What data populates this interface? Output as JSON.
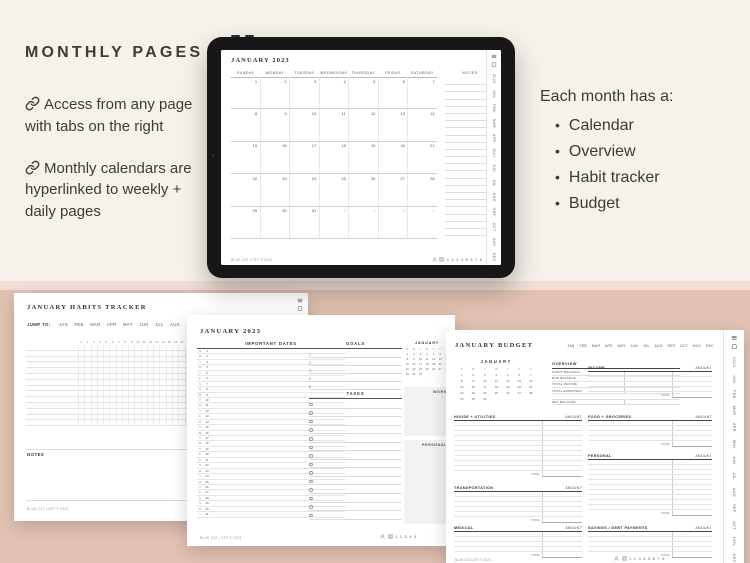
{
  "colors": {
    "top_bg": "#f6f1ea",
    "divider_strip": "#f2dfd8",
    "bottom_bg": "#e1c2b3",
    "ink": "#3d3b37",
    "tablet_frame": "#171717",
    "page_line": "#e3e3e3",
    "shaded_box": "#f2f2f1"
  },
  "intro": {
    "heading": "MONTHLY PAGES",
    "features": [
      "Access from any page with tabs on the right",
      "Monthly calendars are hyperlinked to weekly + daily pages"
    ]
  },
  "month_contents": {
    "intro": "Each month has a:",
    "items": [
      "Calendar",
      "Overview",
      "Habit tracker",
      "Budget"
    ]
  },
  "year": "2023",
  "months_short": [
    "JAN",
    "FEB",
    "MAR",
    "APR",
    "MAY",
    "JUN",
    "JUL",
    "AUG",
    "SEP",
    "OCT",
    "NOV",
    "DEC"
  ],
  "footer_credit": "BLUE CAT LOFT © 2023",
  "bullet_glyph": "•",
  "tablet_calendar": {
    "title": "JANUARY 2023",
    "day_headers": [
      "SUNDAY",
      "MONDAY",
      "TUESDAY",
      "WEDNESDAY",
      "THURSDAY",
      "FRIDAY",
      "SATURDAY"
    ],
    "notes_label": "NOTES",
    "weeks": [
      {
        "days": [
          "1",
          "2",
          "3",
          "4",
          "5",
          "6",
          "7"
        ],
        "muted_from": null
      },
      {
        "days": [
          "8",
          "9",
          "10",
          "11",
          "12",
          "13",
          "14"
        ],
        "muted_from": null
      },
      {
        "days": [
          "15",
          "16",
          "17",
          "18",
          "19",
          "20",
          "21"
        ],
        "muted_from": null
      },
      {
        "days": [
          "22",
          "23",
          "24",
          "25",
          "26",
          "27",
          "28"
        ],
        "muted_from": null
      },
      {
        "days": [
          "29",
          "30",
          "31",
          "1",
          "2",
          "3",
          "4"
        ],
        "muted_from": 3
      }
    ],
    "page_numbers": [
      "1",
      "2",
      "3",
      "4",
      "5",
      "6",
      "7",
      "8"
    ]
  },
  "mini_calendar": {
    "day_letters": [
      "S",
      "M",
      "T",
      "W",
      "T",
      "F",
      "S"
    ],
    "weeks": [
      [
        "1",
        "2",
        "3",
        "4",
        "5",
        "6",
        "7"
      ],
      [
        "8",
        "9",
        "10",
        "11",
        "12",
        "13",
        "14"
      ],
      [
        "15",
        "16",
        "17",
        "18",
        "19",
        "20",
        "21"
      ],
      [
        "22",
        "23",
        "24",
        "25",
        "26",
        "27",
        "28"
      ],
      [
        "29",
        "30",
        "31",
        "",
        "",
        "",
        ""
      ]
    ]
  },
  "habit_page": {
    "title": "JANUARY HABITS TRACKER",
    "jump_label": "JUMP TO:",
    "day_count": 31,
    "habit_rows": 14,
    "notes_label": "NOTES"
  },
  "overview_page": {
    "title": "JANUARY 2023",
    "important_dates_label": "IMPORTANT DATES",
    "day_rows": [
      [
        "S",
        "1"
      ],
      [
        "M",
        "2"
      ],
      [
        "T",
        "3"
      ],
      [
        "W",
        "4"
      ],
      [
        "T",
        "5"
      ],
      [
        "F",
        "6"
      ],
      [
        "S",
        "7"
      ],
      [
        "S",
        "8"
      ],
      [
        "M",
        "9"
      ],
      [
        "T",
        "10"
      ],
      [
        "W",
        "11"
      ],
      [
        "T",
        "12"
      ],
      [
        "F",
        "13"
      ],
      [
        "S",
        "14"
      ],
      [
        "S",
        "15"
      ],
      [
        "M",
        "16"
      ],
      [
        "T",
        "17"
      ],
      [
        "W",
        "18"
      ],
      [
        "T",
        "19"
      ],
      [
        "F",
        "20"
      ],
      [
        "S",
        "21"
      ],
      [
        "S",
        "22"
      ],
      [
        "M",
        "23"
      ],
      [
        "T",
        "24"
      ],
      [
        "W",
        "25"
      ],
      [
        "T",
        "26"
      ],
      [
        "F",
        "27"
      ],
      [
        "S",
        "28"
      ],
      [
        "S",
        "29"
      ],
      [
        "M",
        "30"
      ],
      [
        "T",
        "31"
      ]
    ],
    "goals_label": "GOALS",
    "goal_numbers": [
      "1",
      "2",
      "3",
      "4",
      "5"
    ],
    "tasks_label": "TASKS",
    "task_rows": 14,
    "mini_calendar_title": "JANUARY",
    "work_label": "WORK",
    "personal_label": "PERSONAL",
    "page_numbers": [
      "1",
      "2",
      "3",
      "4",
      "5"
    ]
  },
  "budget_page": {
    "title": "JANUARY BUDGET",
    "mini_calendar_title": "JANUARY",
    "overview_label": "OVERVIEW",
    "overview_rows": [
      "START BALANCE",
      "END BALANCE",
      "TOTAL INCOME",
      "TOTAL EXPENSES"
    ],
    "net_row_label": "NET BALANCE",
    "amount_label": "AMOUNT",
    "total_label": "TOTAL",
    "sections_left": [
      {
        "label": "HOUSE + UTILITIES",
        "rows": 10
      },
      {
        "label": "TRANSPORTATION",
        "rows": 5
      },
      {
        "label": "MEDICAL",
        "rows": 4
      }
    ],
    "sections_right": [
      {
        "label": "INCOME",
        "rows": 4
      },
      {
        "label": "FOOD + GROCERIES",
        "rows": 4
      },
      {
        "label": "PERSONAL",
        "rows": 10
      },
      {
        "label": "SAVINGS / DEBT PAYMENTS",
        "rows": 4
      }
    ],
    "page_numbers": [
      "1",
      "2",
      "3",
      "4",
      "5",
      "6",
      "7",
      "8"
    ]
  }
}
